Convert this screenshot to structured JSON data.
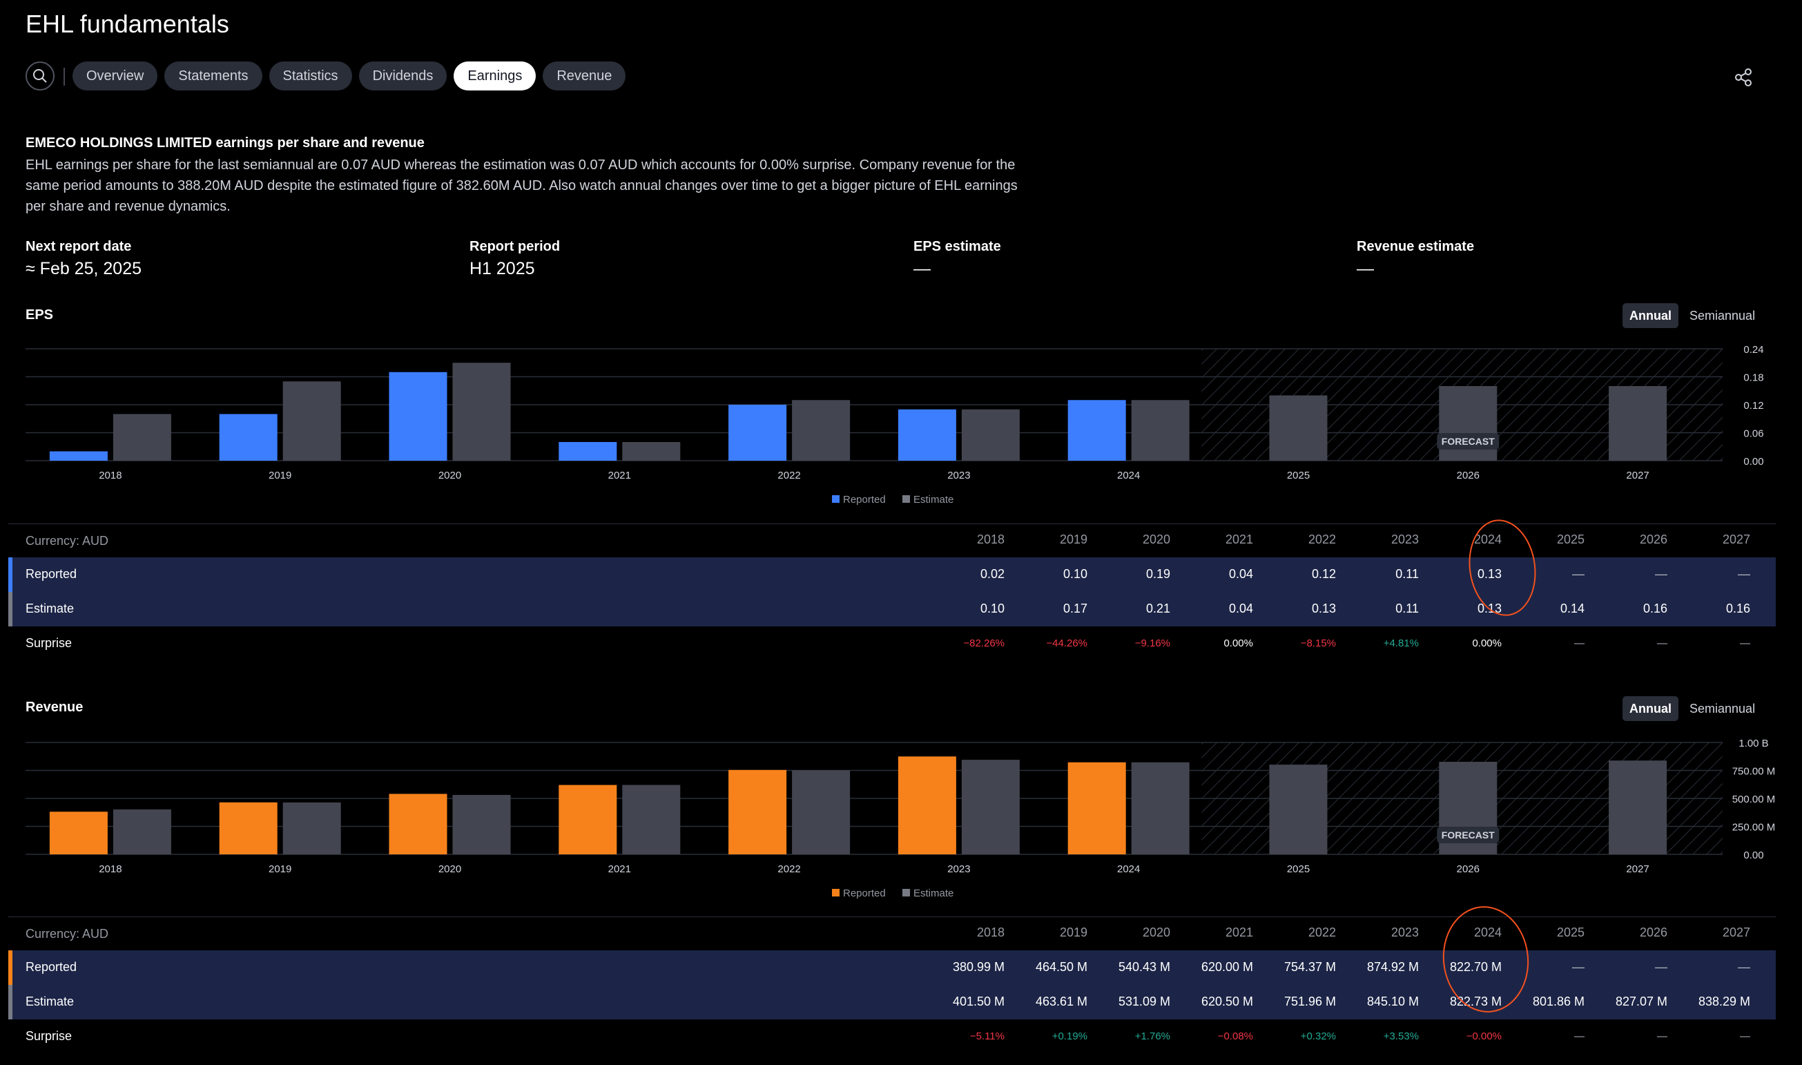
{
  "page": {
    "title": "EHL fundamentals"
  },
  "tabs": [
    "Overview",
    "Statements",
    "Statistics",
    "Dividends",
    "Earnings",
    "Revenue"
  ],
  "active_tab": "Earnings",
  "intro": {
    "title": "EMECO HOLDINGS LIMITED earnings per share and revenue",
    "body": "EHL earnings per share for the last semiannual are 0.07 AUD whereas the estimation was 0.07 AUD which accounts for 0.00% surprise. Company revenue for the same period amounts to 388.20M AUD despite the estimated figure of 382.60M AUD. Also watch annual changes over time to get a bigger picture of EHL earnings per share and revenue dynamics."
  },
  "key_values": [
    {
      "label": "Next report date",
      "value": "≈ Feb 25, 2025"
    },
    {
      "label": "Report period",
      "value": "H1 2025"
    },
    {
      "label": "EPS estimate",
      "value": "—"
    },
    {
      "label": "Revenue estimate",
      "value": "—"
    }
  ],
  "toggle": {
    "annual": "Annual",
    "semiannual": "Semiannual"
  },
  "forecast_label": "FORECAST",
  "legend": {
    "reported": "Reported",
    "estimate": "Estimate"
  },
  "colors": {
    "eps_reported": "#3d7eff",
    "rev_reported": "#f7821b",
    "estimate": "#434651",
    "band": "#1c2547"
  },
  "eps": {
    "title": "EPS",
    "currency": "Currency: AUD",
    "years": [
      "2018",
      "2019",
      "2020",
      "2021",
      "2022",
      "2023",
      "2024",
      "2025",
      "2026",
      "2027"
    ],
    "reported_label": "Reported",
    "estimate_label": "Estimate",
    "surprise_label": "Surprise",
    "reported_display": [
      "0.02",
      "0.10",
      "0.19",
      "0.04",
      "0.12",
      "0.11",
      "0.13",
      "—",
      "—",
      "—"
    ],
    "estimate_display": [
      "0.10",
      "0.17",
      "0.21",
      "0.04",
      "0.13",
      "0.11",
      "0.13",
      "0.14",
      "0.16",
      "0.16"
    ],
    "surprise_display": [
      "−82.26%",
      "−44.26%",
      "−9.16%",
      "0.00%",
      "−8.15%",
      "+4.81%",
      "0.00%",
      "—",
      "—",
      "—"
    ]
  },
  "revenue": {
    "title": "Revenue",
    "currency": "Currency: AUD",
    "years": [
      "2018",
      "2019",
      "2020",
      "2021",
      "2022",
      "2023",
      "2024",
      "2025",
      "2026",
      "2027"
    ],
    "reported_label": "Reported",
    "estimate_label": "Estimate",
    "surprise_label": "Surprise",
    "reported_display": [
      "380.99 M",
      "464.50 M",
      "540.43 M",
      "620.00 M",
      "754.37 M",
      "874.92 M",
      "822.70 M",
      "—",
      "—",
      "—"
    ],
    "estimate_display": [
      "401.50 M",
      "463.61 M",
      "531.09 M",
      "620.50 M",
      "751.96 M",
      "845.10 M",
      "822.73 M",
      "801.86 M",
      "827.07 M",
      "838.29 M"
    ],
    "surprise_display": [
      "−5.11%",
      "+0.19%",
      "+1.76%",
      "−0.08%",
      "+0.32%",
      "+3.53%",
      "−0.00%",
      "—",
      "—",
      "—"
    ]
  },
  "chart_data": [
    {
      "type": "bar",
      "categories": [
        "2018",
        "2019",
        "2020",
        "2021",
        "2022",
        "2023",
        "2024",
        "2025",
        "2026",
        "2027"
      ],
      "series": [
        {
          "name": "Reported",
          "values": [
            0.02,
            0.1,
            0.19,
            0.04,
            0.12,
            0.11,
            0.13,
            null,
            null,
            null
          ]
        },
        {
          "name": "Estimate",
          "values": [
            0.1,
            0.17,
            0.21,
            0.04,
            0.13,
            0.11,
            0.13,
            0.14,
            0.16,
            0.16
          ]
        }
      ],
      "yticks": [
        "0.24",
        "0.18",
        "0.12",
        "0.06",
        "0.00"
      ],
      "ylim": [
        0,
        0.24
      ],
      "legend": "bottom-center",
      "grid": true
    },
    {
      "type": "bar",
      "categories": [
        "2018",
        "2019",
        "2020",
        "2021",
        "2022",
        "2023",
        "2024",
        "2025",
        "2026",
        "2027"
      ],
      "series": [
        {
          "name": "Reported",
          "values": [
            380.99,
            464.5,
            540.43,
            620.0,
            754.37,
            874.92,
            822.7,
            null,
            null,
            null
          ]
        },
        {
          "name": "Estimate",
          "values": [
            401.5,
            463.61,
            531.09,
            620.5,
            751.96,
            845.1,
            822.73,
            801.86,
            827.07,
            838.29
          ]
        }
      ],
      "yticks": [
        "1.00 B",
        "750.00 M",
        "500.00 M",
        "250.00 M",
        "0.00"
      ],
      "ylim": [
        0,
        1000
      ],
      "yunit": "M",
      "legend": "bottom-center",
      "grid": true
    }
  ]
}
